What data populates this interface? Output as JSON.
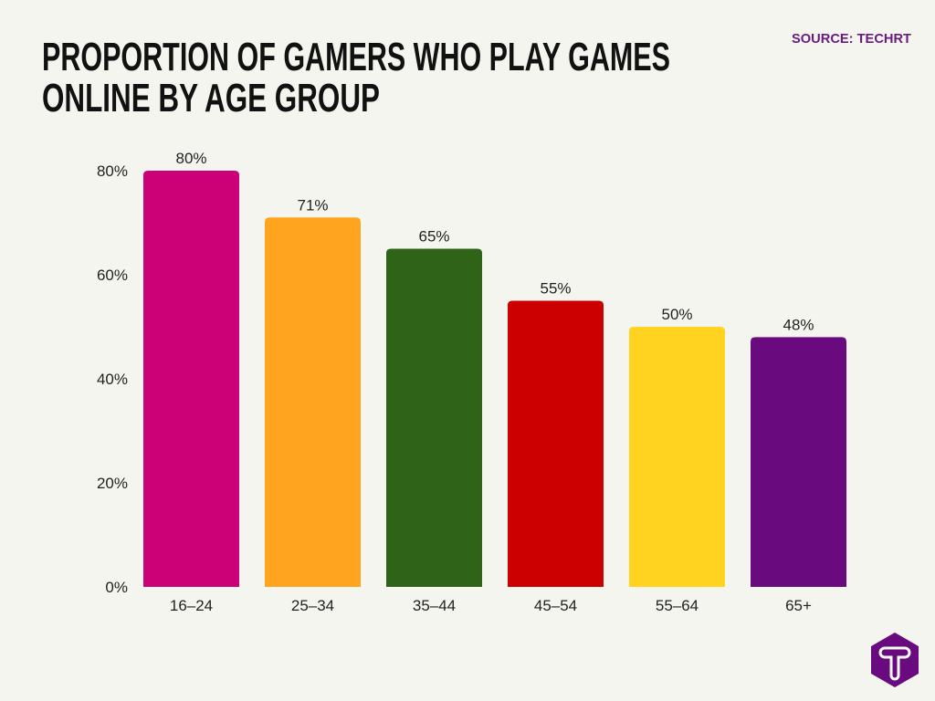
{
  "chart_data": {
    "type": "bar",
    "title": [
      "PROPORTION OF GAMERS WHO PLAY GAMES",
      "ONLINE BY AGE GROUP"
    ],
    "source": "SOURCE: TECHRT",
    "categories": [
      "16–24",
      "25–34",
      "35–44",
      "45–54",
      "55–64",
      "65+"
    ],
    "values": [
      80,
      71,
      65,
      55,
      50,
      48
    ],
    "data_labels": [
      "80%",
      "71%",
      "65%",
      "55%",
      "50%",
      "48%"
    ],
    "colors": [
      "#cc0077",
      "#ffa41f",
      "#2e6318",
      "#cc0000",
      "#ffd31f",
      "#6a0a7f"
    ],
    "xlabel": "",
    "ylabel": "",
    "ylim": [
      0,
      80
    ],
    "yticks": [
      0,
      20,
      40,
      60,
      80
    ],
    "ytick_labels": [
      "0%",
      "20%",
      "40%",
      "60%",
      "80%"
    ],
    "grid": false,
    "legend": "none"
  },
  "logo": {
    "text": "T",
    "color": "#6a0a7f"
  }
}
